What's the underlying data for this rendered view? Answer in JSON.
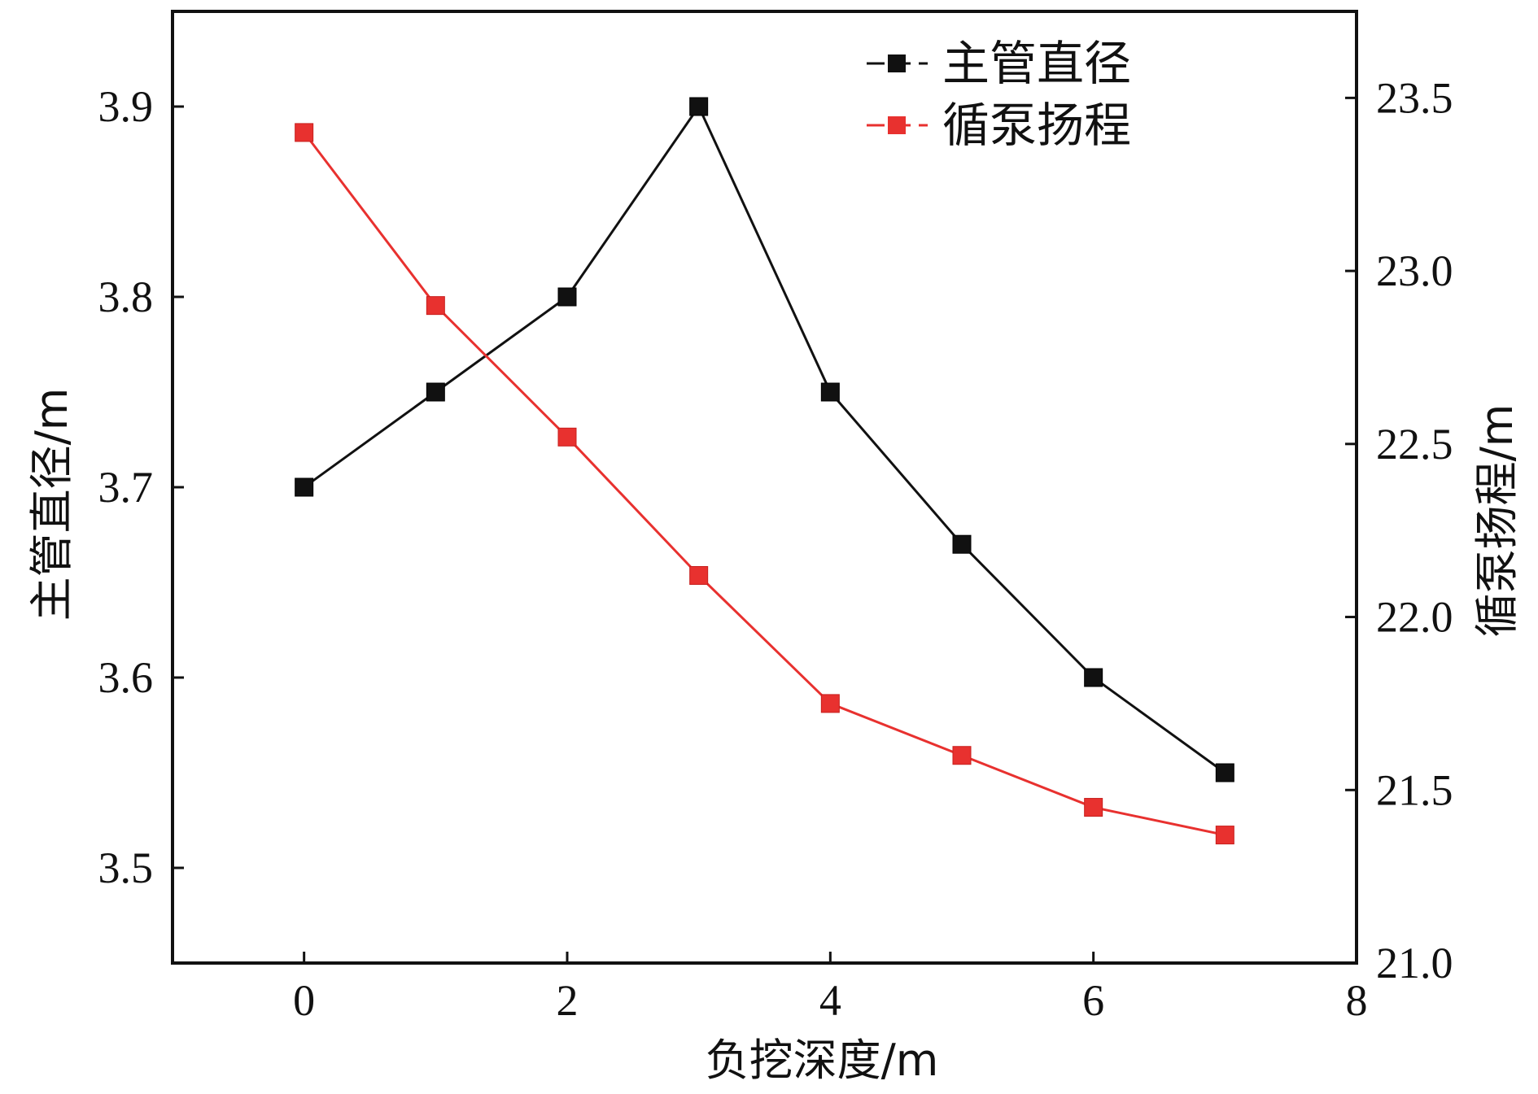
{
  "chart_data": {
    "type": "line",
    "xlabel": "负挖深度/m",
    "ylabel_left": "主管直径/m",
    "ylabel_right": "循泵扬程/m",
    "xlim": [
      -1,
      8
    ],
    "ylim_left": [
      3.45,
      3.95
    ],
    "ylim_right": [
      21.0,
      23.75
    ],
    "x_ticks": [
      0,
      2,
      4,
      6,
      8
    ],
    "y_ticks_left": [
      3.5,
      3.6,
      3.7,
      3.8,
      3.9
    ],
    "y_ticks_right": [
      21.0,
      21.5,
      22.0,
      22.5,
      23.0,
      23.5
    ],
    "x_tick_labels": [
      "0",
      "2",
      "4",
      "6",
      "8"
    ],
    "y_tick_labels_left": [
      "3.5",
      "3.6",
      "3.7",
      "3.8",
      "3.9"
    ],
    "y_tick_labels_right": [
      "21.0",
      "21.5",
      "22.0",
      "22.5",
      "23.0",
      "23.5"
    ],
    "grid": false,
    "legend_position": "top-right",
    "series": [
      {
        "name": "主管直径",
        "axis": "left",
        "color": "#111111",
        "marker": "square",
        "x": [
          0,
          1,
          2,
          3,
          4,
          5,
          6,
          7
        ],
        "values": [
          3.7,
          3.75,
          3.8,
          3.9,
          3.75,
          3.67,
          3.6,
          3.55
        ]
      },
      {
        "name": "循泵扬程",
        "axis": "right",
        "color": "#e8312f",
        "marker": "square",
        "x": [
          0,
          1,
          2,
          3,
          4,
          5,
          6,
          7
        ],
        "values": [
          23.4,
          22.9,
          22.52,
          22.12,
          21.75,
          21.6,
          21.45,
          21.37
        ]
      }
    ]
  }
}
